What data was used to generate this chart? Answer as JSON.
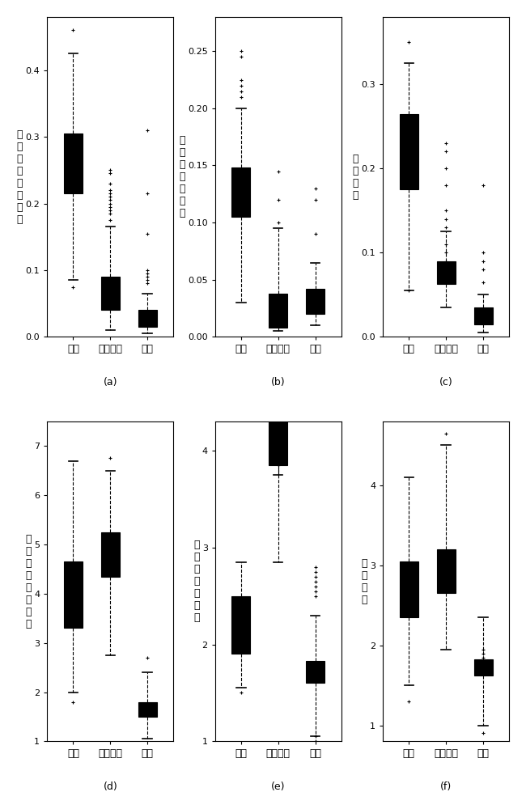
{
  "subplots": [
    {
      "label": "(a)",
      "ylabel": "植被指数年最大值",
      "categories": [
        "植被",
        "不透水面",
        "裸土"
      ],
      "ylim": [
        0,
        0.48
      ],
      "yticks": [
        0,
        0.1,
        0.2,
        0.3,
        0.4
      ],
      "boxes": [
        {
          "whislo": 0.085,
          "q1": 0.215,
          "med": 0.263,
          "q3": 0.305,
          "whishi": 0.425,
          "fliers": [
            0.46,
            0.075
          ]
        },
        {
          "whislo": 0.01,
          "q1": 0.04,
          "med": 0.065,
          "q3": 0.09,
          "whishi": 0.165,
          "fliers": [
            0.175,
            0.185,
            0.19,
            0.195,
            0.2,
            0.205,
            0.21,
            0.215,
            0.22,
            0.23,
            0.245,
            0.25
          ]
        },
        {
          "whislo": 0.005,
          "q1": 0.015,
          "med": 0.025,
          "q3": 0.04,
          "whishi": 0.065,
          "fliers": [
            0.08,
            0.085,
            0.09,
            0.095,
            0.1,
            0.155,
            0.215,
            0.31
          ]
        }
      ]
    },
    {
      "label": "(b)",
      "ylabel": "植被指数年均值",
      "categories": [
        "植被",
        "不透水面",
        "裸土"
      ],
      "ylim": [
        0,
        0.28
      ],
      "yticks": [
        0,
        0.05,
        0.1,
        0.15,
        0.2,
        0.25
      ],
      "boxes": [
        {
          "whislo": 0.03,
          "q1": 0.105,
          "med": 0.128,
          "q3": 0.148,
          "whishi": 0.2,
          "fliers": [
            0.21,
            0.215,
            0.22,
            0.225,
            0.245,
            0.25
          ]
        },
        {
          "whislo": 0.005,
          "q1": 0.008,
          "med": 0.02,
          "q3": 0.038,
          "whishi": 0.095,
          "fliers": [
            0.1,
            0.12,
            0.145
          ]
        },
        {
          "whislo": 0.01,
          "q1": 0.02,
          "med": 0.03,
          "q3": 0.042,
          "whishi": 0.065,
          "fliers": [
            0.09,
            0.12,
            0.13
          ]
        }
      ]
    },
    {
      "label": "(c)",
      "ylabel": "植被丰度",
      "categories": [
        "植被",
        "不透水面",
        "裸土"
      ],
      "ylim": [
        0,
        0.38
      ],
      "yticks": [
        0,
        0.1,
        0.2,
        0.3
      ],
      "boxes": [
        {
          "whislo": 0.055,
          "q1": 0.175,
          "med": 0.195,
          "q3": 0.265,
          "whishi": 0.325,
          "fliers": [
            0.35,
            0.055
          ]
        },
        {
          "whislo": 0.035,
          "q1": 0.063,
          "med": 0.078,
          "q3": 0.09,
          "whishi": 0.125,
          "fliers": [
            0.08,
            0.085,
            0.09,
            0.1,
            0.11,
            0.13,
            0.14,
            0.15,
            0.18,
            0.2,
            0.22,
            0.23
          ]
        },
        {
          "whislo": 0.005,
          "q1": 0.015,
          "med": 0.025,
          "q3": 0.035,
          "whishi": 0.05,
          "fliers": [
            0.065,
            0.08,
            0.09,
            0.1,
            0.18
          ]
        }
      ]
    },
    {
      "label": "(d)",
      "ylabel": "裸土指数年最大值",
      "categories": [
        "植被",
        "不透水面",
        "裸土"
      ],
      "ylim": [
        1,
        7.5
      ],
      "yticks": [
        1,
        2,
        3,
        4,
        5,
        6,
        7
      ],
      "boxes": [
        {
          "whislo": 2.0,
          "q1": 3.3,
          "med": 4.0,
          "q3": 4.65,
          "whishi": 6.7,
          "fliers": [
            1.8
          ]
        },
        {
          "whislo": 2.75,
          "q1": 4.35,
          "med": 4.6,
          "q3": 5.25,
          "whishi": 6.5,
          "fliers": [
            6.75
          ]
        },
        {
          "whislo": 1.05,
          "q1": 1.5,
          "med": 1.65,
          "q3": 1.8,
          "whishi": 2.4,
          "fliers": [
            2.7
          ]
        }
      ]
    },
    {
      "label": "(e)",
      "ylabel": "裸土指数年均值",
      "categories": [
        "植被",
        "不透水面",
        "裸土"
      ],
      "ylim": [
        1,
        4.3
      ],
      "yticks": [
        1,
        2,
        3,
        4
      ],
      "boxes": [
        {
          "whislo": 1.55,
          "q1": 1.9,
          "med": 2.1,
          "q3": 2.5,
          "whishi": 2.85,
          "fliers": [
            1.5,
            4.8
          ]
        },
        {
          "whislo": 2.85,
          "q1": 3.85,
          "med": 4.45,
          "q3": 5.0,
          "whishi": 3.75,
          "fliers": [
            3.85,
            3.9
          ]
        },
        {
          "whislo": 1.05,
          "q1": 1.6,
          "med": 1.72,
          "q3": 1.83,
          "whishi": 2.3,
          "fliers": [
            1.0,
            1.05,
            2.5,
            2.55,
            2.6,
            2.65,
            2.7,
            2.75,
            2.8
          ]
        }
      ]
    },
    {
      "label": "(f)",
      "ylabel": "植被丰度",
      "categories": [
        "植被",
        "不透水面",
        "裸土"
      ],
      "ylim": [
        0.8,
        4.8
      ],
      "yticks": [
        1,
        2,
        3,
        4
      ],
      "boxes": [
        {
          "whislo": 1.5,
          "q1": 2.35,
          "med": 2.65,
          "q3": 3.05,
          "whishi": 4.1,
          "fliers": [
            1.3
          ]
        },
        {
          "whislo": 1.95,
          "q1": 2.65,
          "med": 2.75,
          "q3": 3.2,
          "whishi": 4.5,
          "fliers": [
            4.65
          ]
        },
        {
          "whislo": 1.0,
          "q1": 1.62,
          "med": 1.73,
          "q3": 1.83,
          "whishi": 2.35,
          "fliers": [
            0.9,
            1.85,
            1.9,
            1.95
          ]
        }
      ]
    }
  ],
  "x_labels": [
    "植被",
    "不透水面",
    "裸土"
  ],
  "box_color": "white",
  "median_color": "black",
  "whisker_color": "black",
  "flier_color": "black",
  "background_color": "white",
  "fontsize_ylabel": 9,
  "fontsize_tick": 8,
  "fontsize_xlabel": 9,
  "fontsize_label": 9
}
